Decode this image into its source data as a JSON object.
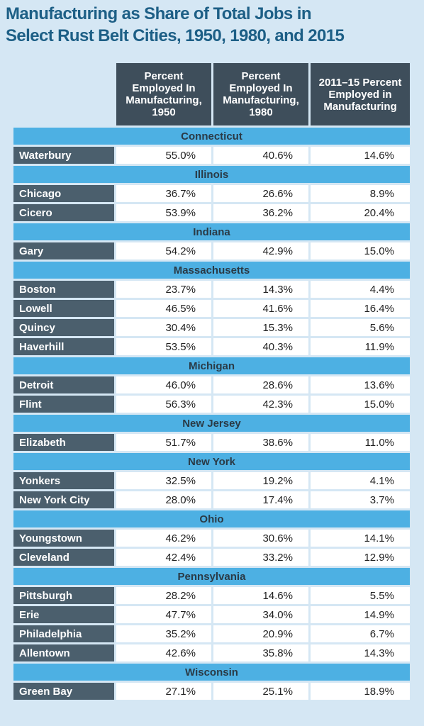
{
  "header": {
    "title_lines": [
      "Manufacturing as Share of Total Jobs in",
      "Select Rust Belt Cities, 1950, 1980, and 2015"
    ]
  },
  "table": {
    "columns": [
      "Percent Employed In Manufacturing, 1950",
      "Percent Employed In Manufacturing, 1980",
      "2011–15 Percent Employed in Manufacturing"
    ],
    "groups": [
      {
        "state": "Connecticut",
        "rows": [
          [
            "Waterbury",
            "55.0%",
            "40.6%",
            "14.6%"
          ]
        ]
      },
      {
        "state": "Illinois",
        "rows": [
          [
            "Chicago",
            "36.7%",
            "26.6%",
            "8.9%"
          ],
          [
            "Cicero",
            "53.9%",
            "36.2%",
            "20.4%"
          ]
        ]
      },
      {
        "state": "Indiana",
        "rows": [
          [
            "Gary",
            "54.2%",
            "42.9%",
            "15.0%"
          ]
        ]
      },
      {
        "state": "Massachusetts",
        "rows": [
          [
            "Boston",
            "23.7%",
            "14.3%",
            "4.4%"
          ],
          [
            "Lowell",
            "46.5%",
            "41.6%",
            "16.4%"
          ],
          [
            "Quincy",
            "30.4%",
            "15.3%",
            "5.6%"
          ],
          [
            "Haverhill",
            "53.5%",
            "40.3%",
            "11.9%"
          ]
        ]
      },
      {
        "state": "Michigan",
        "rows": [
          [
            "Detroit",
            "46.0%",
            "28.6%",
            "13.6%"
          ],
          [
            "Flint",
            "56.3%",
            "42.3%",
            "15.0%"
          ]
        ]
      },
      {
        "state": "New Jersey",
        "rows": [
          [
            "Elizabeth",
            "51.7%",
            "38.6%",
            "11.0%"
          ]
        ]
      },
      {
        "state": "New York",
        "rows": [
          [
            "Yonkers",
            "32.5%",
            "19.2%",
            "4.1%"
          ],
          [
            "New York City",
            "28.0%",
            "17.4%",
            "3.7%"
          ]
        ]
      },
      {
        "state": "Ohio",
        "rows": [
          [
            "Youngstown",
            "46.2%",
            "30.6%",
            "14.1%"
          ],
          [
            "Cleveland",
            "42.4%",
            "33.2%",
            "12.9%"
          ]
        ]
      },
      {
        "state": "Pennsylvania",
        "rows": [
          [
            "Pittsburgh",
            "28.2%",
            "14.6%",
            "5.5%"
          ],
          [
            "Erie",
            "47.7%",
            "34.0%",
            "14.9%"
          ],
          [
            "Philadelphia",
            "35.2%",
            "20.9%",
            "6.7%"
          ],
          [
            "Allentown",
            "42.6%",
            "35.8%",
            "14.3%"
          ]
        ]
      },
      {
        "state": "Wisconsin",
        "rows": [
          [
            "Green Bay",
            "27.1%",
            "25.1%",
            "18.9%"
          ]
        ]
      }
    ]
  }
}
